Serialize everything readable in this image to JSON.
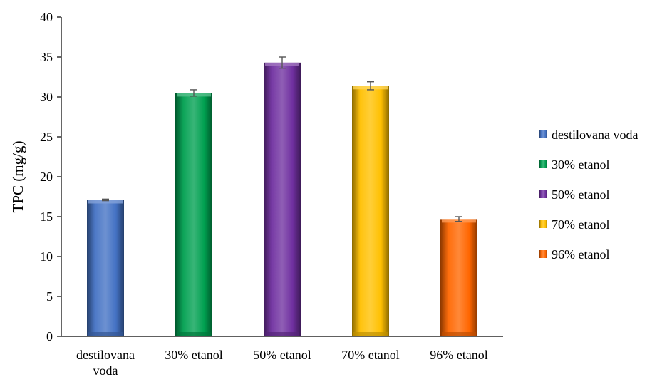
{
  "chart_data": {
    "type": "bar",
    "title": "",
    "xlabel": "",
    "ylabel": "TPC (mg/g)",
    "ylim": [
      0,
      40
    ],
    "yticks": [
      0,
      5,
      10,
      15,
      20,
      25,
      30,
      35,
      40
    ],
    "grid": false,
    "legend_position": "right",
    "categories": [
      [
        "destilovana",
        "voda"
      ],
      [
        "30% etanol"
      ],
      [
        "50% etanol"
      ],
      [
        "70% etanol"
      ],
      [
        "96% etanol"
      ]
    ],
    "series": [
      {
        "name": "destilovana voda",
        "color": "#4472C4",
        "values": [
          17.1,
          null,
          null,
          null,
          null
        ],
        "errors": [
          0.1,
          null,
          null,
          null,
          null
        ]
      },
      {
        "name": "30% etanol",
        "color": "#00A050",
        "values": [
          null,
          30.5,
          null,
          null,
          null
        ],
        "errors": [
          null,
          0.4,
          null,
          null,
          null
        ]
      },
      {
        "name": "50% etanol",
        "color": "#7030A0",
        "values": [
          null,
          null,
          34.3,
          null,
          null
        ],
        "errors": [
          null,
          null,
          0.7,
          null,
          null
        ]
      },
      {
        "name": "70% etanol",
        "color": "#FFC000",
        "values": [
          null,
          null,
          null,
          31.4,
          null
        ],
        "errors": [
          null,
          null,
          null,
          0.5,
          null
        ]
      },
      {
        "name": "96% etanol",
        "color": "#FF6600",
        "values": [
          null,
          null,
          null,
          null,
          14.7
        ],
        "errors": [
          null,
          null,
          null,
          null,
          0.3
        ]
      }
    ]
  }
}
